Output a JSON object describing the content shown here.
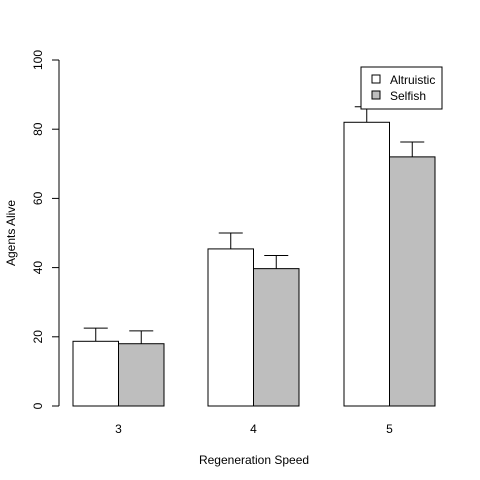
{
  "chart_data": {
    "type": "bar",
    "title": "",
    "xlabel": "Regeneration Speed",
    "ylabel": "Agents Alive",
    "categories": [
      "3",
      "4",
      "5"
    ],
    "ylim": [
      0,
      100
    ],
    "yticks": [
      0,
      20,
      40,
      60,
      80,
      100
    ],
    "grid": false,
    "legend_position": "top-right",
    "series": [
      {
        "name": "Altruistic",
        "color": "#ffffff",
        "values": [
          18.7,
          45.4,
          82.0
        ],
        "error_upper": [
          22.5,
          50.0,
          86.5
        ]
      },
      {
        "name": "Selfish",
        "color": "#bebebe",
        "values": [
          18.0,
          39.7,
          72.0
        ],
        "error_upper": [
          21.7,
          43.5,
          76.3
        ]
      }
    ]
  }
}
